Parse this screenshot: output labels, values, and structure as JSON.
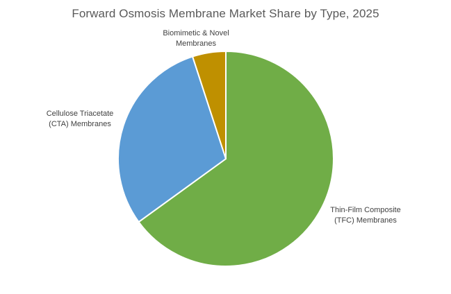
{
  "chart_data": {
    "type": "pie",
    "title": "Forward Osmosis Membrane Market Share by Type, 2025",
    "series": [
      {
        "values": [
          65,
          30,
          5
        ],
        "categories": [
          "Thin-Film Composite (TFC) Membranes",
          "Cellulose Triacetate (CTA) Membranes",
          "Biomimetic & Novel Membranes"
        ]
      }
    ],
    "label_lines": [
      [
        "Thin-Film Composite",
        "(TFC) Membranes"
      ],
      [
        "Cellulose Triacetate",
        "(CTA) Membranes"
      ],
      [
        "Biomimetic & Novel",
        "Membranes"
      ]
    ],
    "colors": [
      "#70AD47",
      "#5B9BD5",
      "#BF9000"
    ],
    "legend": "none",
    "data_labels": "category names"
  }
}
